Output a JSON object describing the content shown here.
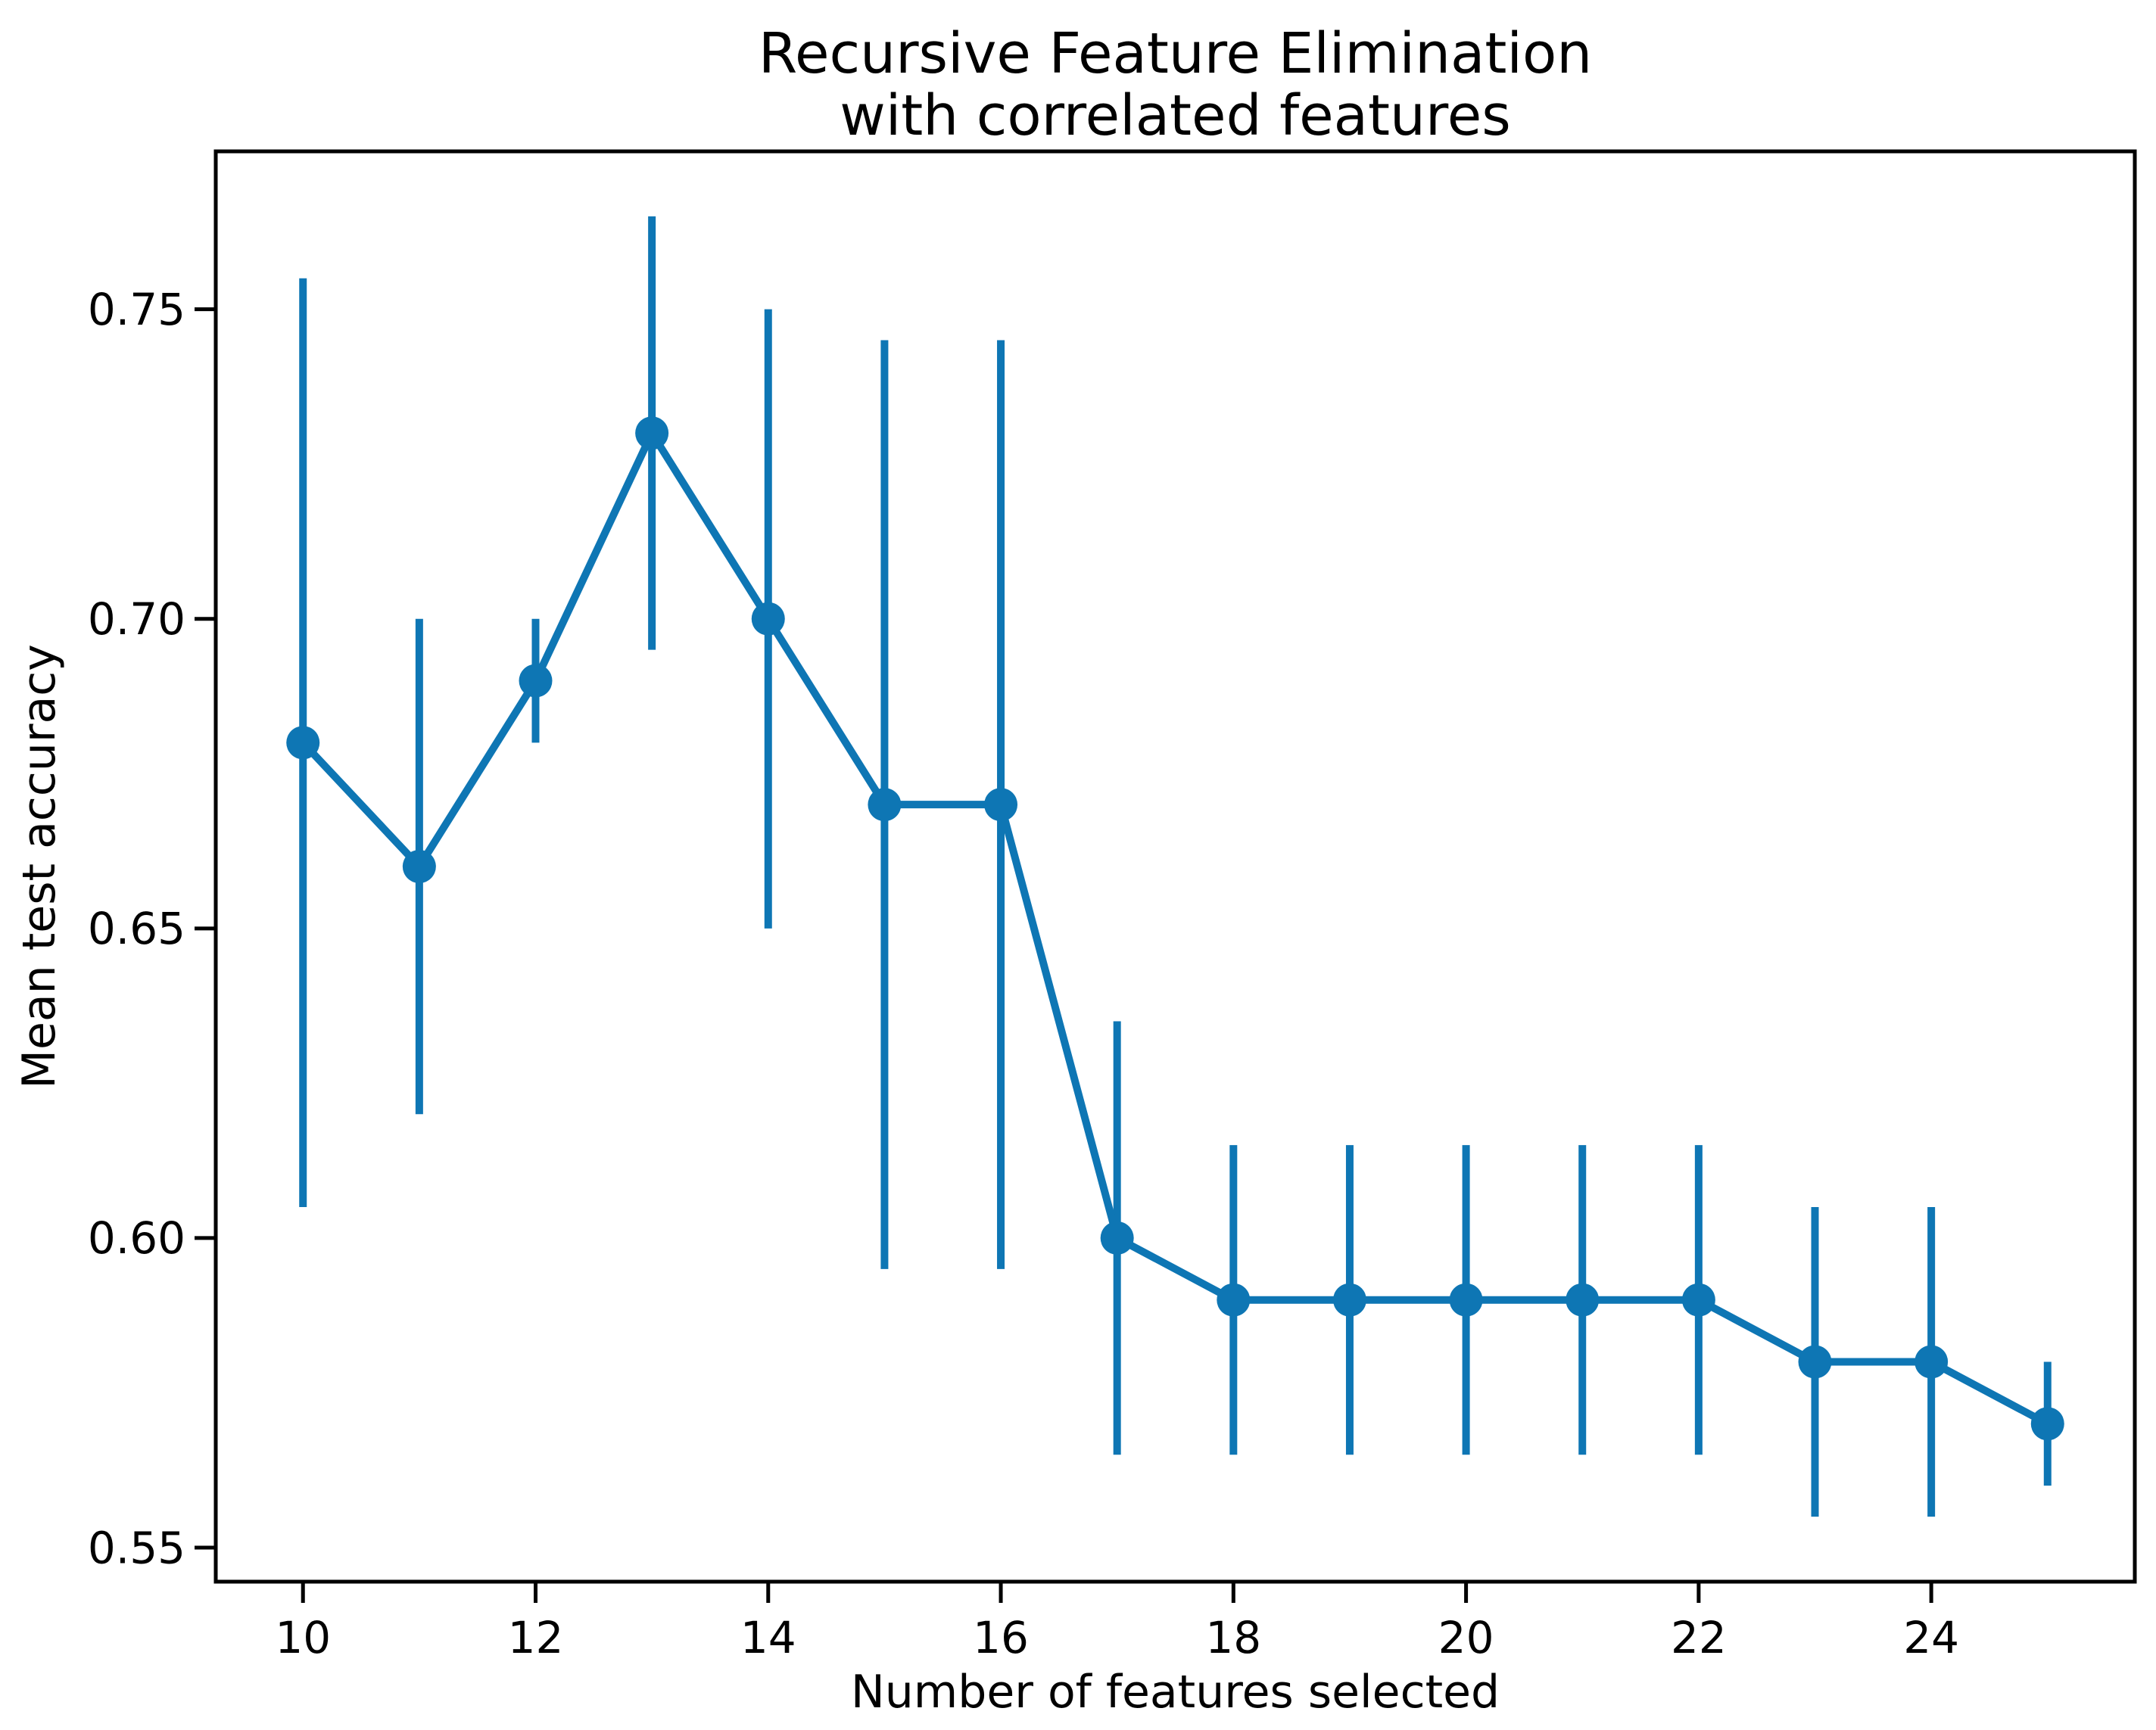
{
  "figure": {
    "background": "#ffffff",
    "kind": "matplotlib-errorbar-plot"
  },
  "chart_data": {
    "type": "line",
    "title": "Recursive Feature Elimination\nwith correlated features",
    "title_lines": [
      "Recursive Feature Elimination",
      "with correlated features"
    ],
    "xlabel": "Number of features selected",
    "ylabel": "Mean test accuracy",
    "x": [
      10,
      11,
      12,
      13,
      14,
      15,
      16,
      17,
      18,
      19,
      20,
      21,
      22,
      23,
      24,
      25
    ],
    "y": [
      0.68,
      0.66,
      0.69,
      0.73,
      0.7,
      0.67,
      0.67,
      0.6,
      0.59,
      0.59,
      0.59,
      0.59,
      0.59,
      0.58,
      0.58,
      0.57
    ],
    "yerr": [
      0.075,
      0.04,
      0.01,
      0.035,
      0.05,
      0.075,
      0.075,
      0.035,
      0.025,
      0.025,
      0.025,
      0.025,
      0.025,
      0.025,
      0.025,
      0.01
    ],
    "xticks": [
      10,
      12,
      14,
      16,
      18,
      20,
      22,
      24
    ],
    "yticks": [
      0.55,
      0.6,
      0.65,
      0.7,
      0.75
    ],
    "ytick_labels": [
      "0.55",
      "0.60",
      "0.65",
      "0.70",
      "0.75"
    ],
    "xlim": [
      9.25,
      25.75
    ],
    "ylim": [
      0.5445,
      0.7755
    ],
    "grid": false,
    "legend": null,
    "series_name": "mean test accuracy",
    "series_color": "#0e76b4",
    "axis_color": "#000000",
    "marker": "circle",
    "errorbar_capsize": 0
  }
}
